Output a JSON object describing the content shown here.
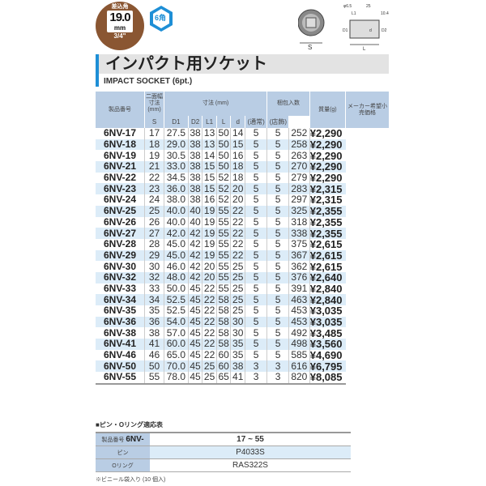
{
  "badge": {
    "label": "差込角",
    "size": "19.0",
    "unit": "mm",
    "inch": "3/4\""
  },
  "hex_badge": "6角",
  "diagram": {
    "labels": [
      "S",
      "φ6.5",
      "25",
      "10.4",
      "L1",
      "D1",
      "D2",
      "d",
      "L"
    ]
  },
  "title": "インパクト用ソケット",
  "subtitle": "IMPACT SOCKET (6pt.)",
  "table": {
    "headers": {
      "part": "製品番号",
      "across": "二面幅寸法(mm)",
      "dims": "寸法 (mm)",
      "pack": "梱包入数",
      "weight": "質量(g)",
      "price": "メーカー希望小売価格"
    },
    "subheaders": [
      "S",
      "D1",
      "D2",
      "L1",
      "L",
      "d",
      "(通常)",
      "(店飾)"
    ],
    "rows": [
      [
        "6NV-17",
        "17",
        "27.5",
        "38",
        "13",
        "50",
        "14",
        "5",
        "5",
        "252",
        "¥2,290"
      ],
      [
        "6NV-18",
        "18",
        "29.0",
        "38",
        "13",
        "50",
        "15",
        "5",
        "5",
        "258",
        "¥2,290"
      ],
      [
        "6NV-19",
        "19",
        "30.5",
        "38",
        "14",
        "50",
        "16",
        "5",
        "5",
        "263",
        "¥2,290"
      ],
      [
        "6NV-21",
        "21",
        "33.0",
        "38",
        "15",
        "50",
        "18",
        "5",
        "5",
        "270",
        "¥2,290"
      ],
      [
        "6NV-22",
        "22",
        "34.5",
        "38",
        "15",
        "52",
        "18",
        "5",
        "5",
        "279",
        "¥2,290"
      ],
      [
        "6NV-23",
        "23",
        "36.0",
        "38",
        "15",
        "52",
        "20",
        "5",
        "5",
        "283",
        "¥2,315"
      ],
      [
        "6NV-24",
        "24",
        "38.0",
        "38",
        "16",
        "52",
        "20",
        "5",
        "5",
        "297",
        "¥2,315"
      ],
      [
        "6NV-25",
        "25",
        "40.0",
        "40",
        "19",
        "55",
        "22",
        "5",
        "5",
        "325",
        "¥2,355"
      ],
      [
        "6NV-26",
        "26",
        "40.0",
        "40",
        "19",
        "55",
        "22",
        "5",
        "5",
        "318",
        "¥2,355"
      ],
      [
        "6NV-27",
        "27",
        "42.0",
        "42",
        "19",
        "55",
        "22",
        "5",
        "5",
        "338",
        "¥2,355"
      ],
      [
        "6NV-28",
        "28",
        "45.0",
        "42",
        "19",
        "55",
        "22",
        "5",
        "5",
        "375",
        "¥2,615"
      ],
      [
        "6NV-29",
        "29",
        "45.0",
        "42",
        "19",
        "55",
        "22",
        "5",
        "5",
        "367",
        "¥2,615"
      ],
      [
        "6NV-30",
        "30",
        "46.0",
        "42",
        "20",
        "55",
        "25",
        "5",
        "5",
        "362",
        "¥2,615"
      ],
      [
        "6NV-32",
        "32",
        "48.0",
        "42",
        "20",
        "55",
        "25",
        "5",
        "5",
        "376",
        "¥2,640"
      ],
      [
        "6NV-33",
        "33",
        "50.0",
        "45",
        "22",
        "55",
        "25",
        "5",
        "5",
        "391",
        "¥2,840"
      ],
      [
        "6NV-34",
        "34",
        "52.5",
        "45",
        "22",
        "58",
        "25",
        "5",
        "5",
        "463",
        "¥2,840"
      ],
      [
        "6NV-35",
        "35",
        "52.5",
        "45",
        "22",
        "58",
        "25",
        "5",
        "5",
        "453",
        "¥3,035"
      ],
      [
        "6NV-36",
        "36",
        "54.0",
        "45",
        "22",
        "58",
        "30",
        "5",
        "5",
        "453",
        "¥3,035"
      ],
      [
        "6NV-38",
        "38",
        "57.0",
        "45",
        "22",
        "58",
        "30",
        "5",
        "5",
        "492",
        "¥3,485"
      ],
      [
        "6NV-41",
        "41",
        "60.0",
        "45",
        "22",
        "58",
        "35",
        "5",
        "5",
        "498",
        "¥3,560"
      ],
      [
        "6NV-46",
        "46",
        "65.0",
        "45",
        "22",
        "60",
        "35",
        "5",
        "5",
        "585",
        "¥4,690"
      ],
      [
        "6NV-50",
        "50",
        "70.0",
        "45",
        "25",
        "60",
        "38",
        "3",
        "3",
        "616",
        "¥6,795"
      ],
      [
        "6NV-55",
        "55",
        "78.0",
        "45",
        "25",
        "65",
        "41",
        "3",
        "3",
        "820",
        "¥8,085"
      ]
    ]
  },
  "pin_table": {
    "title": "■ピン・Oリング適応表",
    "part_label": "製品番号",
    "part_prefix": "6NV-",
    "range": "17 ~ 55",
    "pin_label": "ピン",
    "pin": "P4033S",
    "oring_label": "Oリング",
    "oring": "RAS322S"
  },
  "note": "※ビニール袋入り (10 個入)"
}
